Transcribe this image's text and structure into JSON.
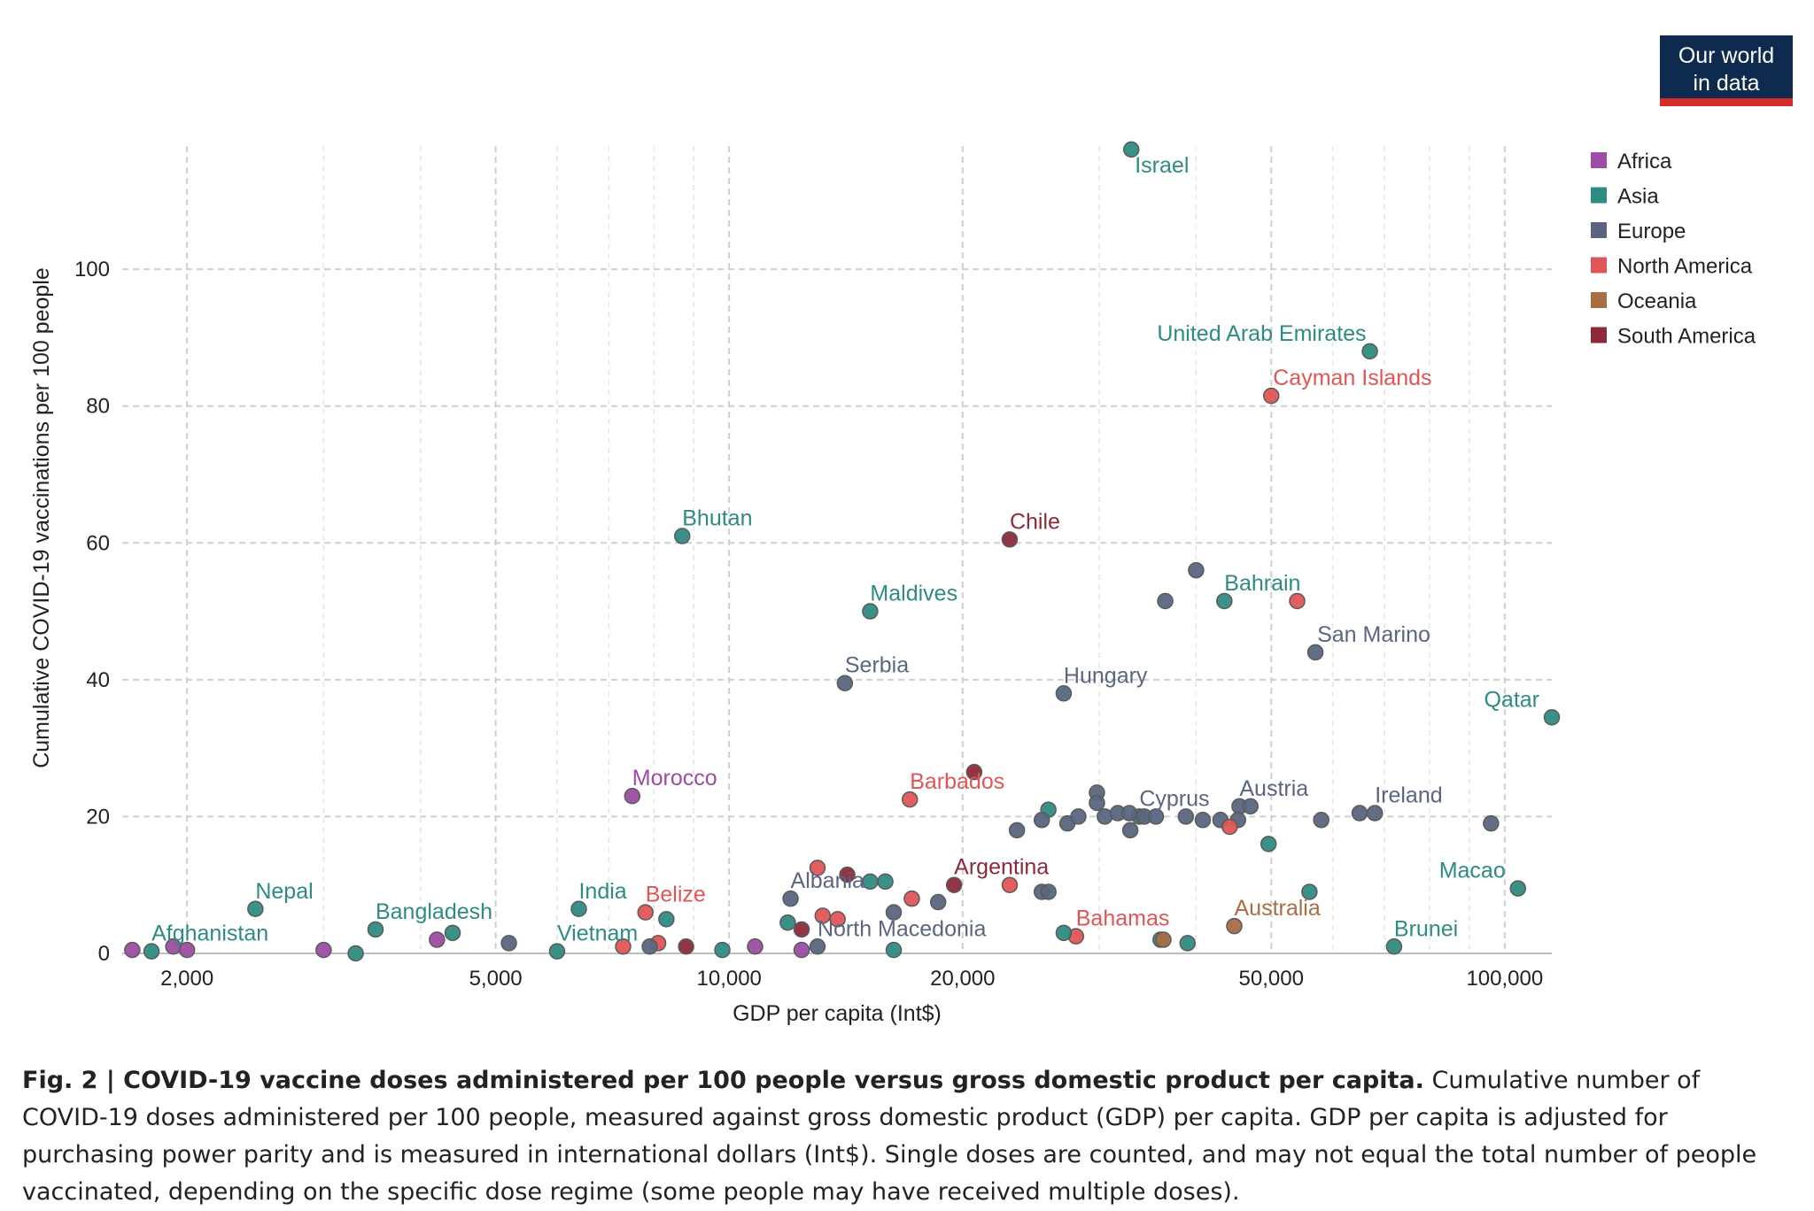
{
  "badge": {
    "line1": "Our world",
    "line2": "in data"
  },
  "caption": {
    "label": "Fig. 2 | COVID-19 vaccine doses administered per 100 people versus gross domestic product per capita.",
    "text": "Cumulative number of COVID-19 doses administered per 100 people, measured against gross domestic product (GDP) per capita. GDP per capita is adjusted for purchasing power parity and is measured in international dollars (Int$). Single doses are counted, and may not equal the total number of people vaccinated, depending on the specific dose regime (some people may have received multiple doses)."
  },
  "chart_data": {
    "type": "scatter",
    "xlabel": "GDP per capita (Int$)",
    "ylabel": "Cumulative COVID-19 vaccinations per 100 people",
    "xscale": "log",
    "xlim": [
      1650,
      115000
    ],
    "ylim": [
      0,
      118
    ],
    "xticks": [
      2000,
      5000,
      10000,
      20000,
      50000,
      100000
    ],
    "xtick_labels": [
      "2,000",
      "5,000",
      "10,000",
      "20,000",
      "50,000",
      "100,000"
    ],
    "yticks": [
      0,
      20,
      40,
      60,
      80,
      100
    ],
    "ytick_labels": [
      "0",
      "20",
      "40",
      "60",
      "80",
      "100"
    ],
    "grid": true,
    "legend_position": "top-right",
    "colors": {
      "Africa": "#9c4da3",
      "Asia": "#2e8b82",
      "Europe": "#5a6680",
      "North America": "#e05556",
      "Oceania": "#a86d45",
      "South America": "#8c2a3a"
    },
    "legend": [
      "Africa",
      "Asia",
      "Europe",
      "North America",
      "Oceania",
      "South America"
    ],
    "points": [
      {
        "label": "Israel",
        "region": "Asia",
        "x": 33000,
        "y": 117.5
      },
      {
        "label": "United Arab Emirates",
        "region": "Asia",
        "x": 67000,
        "y": 88.0
      },
      {
        "label": "Cayman Islands",
        "region": "North America",
        "x": 50000,
        "y": 81.5
      },
      {
        "label": "Bhutan",
        "region": "Asia",
        "x": 8700,
        "y": 61.0
      },
      {
        "label": "Chile",
        "region": "South America",
        "x": 23000,
        "y": 60.5
      },
      {
        "label": "Maldives",
        "region": "Asia",
        "x": 15200,
        "y": 50.0
      },
      {
        "label": "Bahrain",
        "region": "Asia",
        "x": 43500,
        "y": 51.5
      },
      {
        "label": "",
        "region": "North America",
        "x": 54000,
        "y": 51.5
      },
      {
        "label": "",
        "region": "Europe",
        "x": 40000,
        "y": 56.0
      },
      {
        "label": "",
        "region": "Europe",
        "x": 36500,
        "y": 51.5
      },
      {
        "label": "San Marino",
        "region": "Europe",
        "x": 57000,
        "y": 44.0
      },
      {
        "label": "Serbia",
        "region": "Europe",
        "x": 14100,
        "y": 39.5
      },
      {
        "label": "Hungary",
        "region": "Europe",
        "x": 27000,
        "y": 38.0
      },
      {
        "label": "Qatar",
        "region": "Asia",
        "x": 115000,
        "y": 34.5
      },
      {
        "label": "Morocco",
        "region": "Africa",
        "x": 7500,
        "y": 23.0
      },
      {
        "label": "Barbados",
        "region": "North America",
        "x": 17100,
        "y": 22.5
      },
      {
        "label": "",
        "region": "South America",
        "x": 20700,
        "y": 26.5
      },
      {
        "label": "Cyprus",
        "region": "Europe",
        "x": 33800,
        "y": 20.0
      },
      {
        "label": "Austria",
        "region": "Europe",
        "x": 45500,
        "y": 21.5
      },
      {
        "label": "",
        "region": "Europe",
        "x": 47000,
        "y": 21.5
      },
      {
        "label": "Ireland",
        "region": "Europe",
        "x": 68000,
        "y": 20.5
      },
      {
        "label": "",
        "region": "Europe",
        "x": 65000,
        "y": 20.5
      },
      {
        "label": "",
        "region": "Europe",
        "x": 58000,
        "y": 19.5
      },
      {
        "label": "",
        "region": "Europe",
        "x": 96000,
        "y": 19.0
      },
      {
        "label": "",
        "region": "Asia",
        "x": 25800,
        "y": 21.0
      },
      {
        "label": "",
        "region": "Europe",
        "x": 25300,
        "y": 19.5
      },
      {
        "label": "",
        "region": "Europe",
        "x": 23500,
        "y": 18.0
      },
      {
        "label": "",
        "region": "Europe",
        "x": 27300,
        "y": 19.0
      },
      {
        "label": "",
        "region": "Europe",
        "x": 28200,
        "y": 20.0
      },
      {
        "label": "",
        "region": "Europe",
        "x": 29800,
        "y": 23.5
      },
      {
        "label": "",
        "region": "Europe",
        "x": 29800,
        "y": 22.0
      },
      {
        "label": "",
        "region": "Europe",
        "x": 30500,
        "y": 20.0
      },
      {
        "label": "",
        "region": "Europe",
        "x": 31700,
        "y": 20.5
      },
      {
        "label": "",
        "region": "Europe",
        "x": 32800,
        "y": 20.5
      },
      {
        "label": "",
        "region": "Europe",
        "x": 32900,
        "y": 18.0
      },
      {
        "label": "",
        "region": "Europe",
        "x": 34300,
        "y": 20.0
      },
      {
        "label": "",
        "region": "Europe",
        "x": 35500,
        "y": 20.0
      },
      {
        "label": "",
        "region": "Europe",
        "x": 38800,
        "y": 20.0
      },
      {
        "label": "",
        "region": "Europe",
        "x": 40800,
        "y": 19.5
      },
      {
        "label": "",
        "region": "Europe",
        "x": 43000,
        "y": 19.5
      },
      {
        "label": "",
        "region": "Europe",
        "x": 45300,
        "y": 19.5
      },
      {
        "label": "",
        "region": "North America",
        "x": 44200,
        "y": 18.5
      },
      {
        "label": "",
        "region": "Asia",
        "x": 49600,
        "y": 16.0
      },
      {
        "label": "Macao",
        "region": "Asia",
        "x": 104000,
        "y": 9.5
      },
      {
        "label": "Argentina",
        "region": "South America",
        "x": 19500,
        "y": 10.0
      },
      {
        "label": "",
        "region": "North America",
        "x": 23000,
        "y": 10.0
      },
      {
        "label": "",
        "region": "North America",
        "x": 13000,
        "y": 12.5
      },
      {
        "label": "",
        "region": "South America",
        "x": 14200,
        "y": 11.5
      },
      {
        "label": "",
        "region": "Asia",
        "x": 15200,
        "y": 10.5
      },
      {
        "label": "",
        "region": "Asia",
        "x": 15900,
        "y": 10.5
      },
      {
        "label": "Albania",
        "region": "Europe",
        "x": 12000,
        "y": 8.0
      },
      {
        "label": "",
        "region": "North America",
        "x": 17200,
        "y": 8.0
      },
      {
        "label": "",
        "region": "Europe",
        "x": 18600,
        "y": 7.5
      },
      {
        "label": "",
        "region": "Europe",
        "x": 25300,
        "y": 9.0
      },
      {
        "label": "",
        "region": "Europe",
        "x": 25800,
        "y": 9.0
      },
      {
        "label": "",
        "region": "Asia",
        "x": 56000,
        "y": 9.0
      },
      {
        "label": "Australia",
        "region": "Oceania",
        "x": 44800,
        "y": 4.0
      },
      {
        "label": "Bahamas",
        "region": "North America",
        "x": 28000,
        "y": 2.5
      },
      {
        "label": "",
        "region": "Asia",
        "x": 27000,
        "y": 3.0
      },
      {
        "label": "",
        "region": "Asia",
        "x": 36000,
        "y": 2.0
      },
      {
        "label": "",
        "region": "Oceania",
        "x": 36300,
        "y": 2.0
      },
      {
        "label": "",
        "region": "Asia",
        "x": 39000,
        "y": 1.5
      },
      {
        "label": "Brunei",
        "region": "Asia",
        "x": 72000,
        "y": 1.0
      },
      {
        "label": "North Macedonia",
        "region": "Europe",
        "x": 13000,
        "y": 1.0
      },
      {
        "label": "",
        "region": "Asia",
        "x": 16300,
        "y": 0.5
      },
      {
        "label": "",
        "region": "Europe",
        "x": 16300,
        "y": 6.0
      },
      {
        "label": "",
        "region": "North America",
        "x": 13200,
        "y": 5.5
      },
      {
        "label": "",
        "region": "North America",
        "x": 13800,
        "y": 5.0
      },
      {
        "label": "",
        "region": "Asia",
        "x": 11900,
        "y": 4.5
      },
      {
        "label": "",
        "region": "South America",
        "x": 12400,
        "y": 3.5
      },
      {
        "label": "",
        "region": "Africa",
        "x": 10800,
        "y": 1.0
      },
      {
        "label": "",
        "region": "Africa",
        "x": 12400,
        "y": 0.5
      },
      {
        "label": "",
        "region": "Asia",
        "x": 9800,
        "y": 0.5
      },
      {
        "label": "",
        "region": "South America",
        "x": 8800,
        "y": 1.0
      },
      {
        "label": "India",
        "region": "Asia",
        "x": 6400,
        "y": 6.5
      },
      {
        "label": "Belize",
        "region": "North America",
        "x": 7800,
        "y": 6.0
      },
      {
        "label": "",
        "region": "Asia",
        "x": 8300,
        "y": 5.0
      },
      {
        "label": "Vietnam",
        "region": "Asia",
        "x": 6000,
        "y": 0.3
      },
      {
        "label": "",
        "region": "North America",
        "x": 7300,
        "y": 1.0
      },
      {
        "label": "",
        "region": "North America",
        "x": 8100,
        "y": 1.5
      },
      {
        "label": "",
        "region": "Europe",
        "x": 7900,
        "y": 1.0
      },
      {
        "label": "",
        "region": "Europe",
        "x": 5200,
        "y": 1.5
      },
      {
        "label": "Bangladesh",
        "region": "Asia",
        "x": 3500,
        "y": 3.5
      },
      {
        "label": "",
        "region": "Asia",
        "x": 4400,
        "y": 3.0
      },
      {
        "label": "",
        "region": "Africa",
        "x": 4200,
        "y": 2.0
      },
      {
        "label": "",
        "region": "Asia",
        "x": 3300,
        "y": 0.0
      },
      {
        "label": "",
        "region": "Africa",
        "x": 3000,
        "y": 0.5
      },
      {
        "label": "Nepal",
        "region": "Asia",
        "x": 2450,
        "y": 6.5
      },
      {
        "label": "Afghanistan",
        "region": "Asia",
        "x": 1800,
        "y": 0.3
      },
      {
        "label": "",
        "region": "Africa",
        "x": 1700,
        "y": 0.5
      },
      {
        "label": "",
        "region": "Africa",
        "x": 1920,
        "y": 1.0
      },
      {
        "label": "",
        "region": "Africa",
        "x": 2000,
        "y": 0.5
      }
    ]
  }
}
